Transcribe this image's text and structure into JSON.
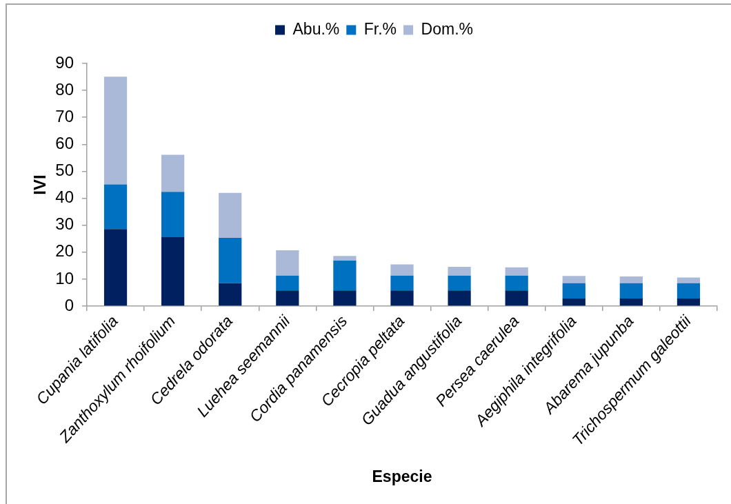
{
  "chart_data": {
    "type": "bar",
    "stacked": true,
    "xlabel": "Especie",
    "ylabel": "IVI",
    "categories": [
      "Cupania latifolia",
      "Zanthoxylum rhoifolium",
      "Cedrela odorata",
      "Luehea seemannii",
      "Cordia panamensis",
      "Cecropia peltata",
      "Guadua angustifolia",
      "Persea caerulea",
      "Aegiphila integrifolia",
      "Abarema jupunba",
      "Trichospermum galeottii"
    ],
    "series": [
      {
        "name": "Abu.%",
        "color": "#002060",
        "values": [
          28.6,
          25.6,
          8.5,
          5.8,
          5.8,
          5.8,
          5.8,
          5.8,
          2.8,
          2.8,
          2.8
        ]
      },
      {
        "name": "Fr.%",
        "color": "#0070c0",
        "values": [
          16.5,
          16.8,
          16.8,
          5.5,
          11.1,
          5.5,
          5.5,
          5.5,
          5.7,
          5.7,
          5.7
        ]
      },
      {
        "name": "Dom.%",
        "color": "#aab9d7",
        "values": [
          40.0,
          13.7,
          16.7,
          9.4,
          1.7,
          4.2,
          3.3,
          3.1,
          2.7,
          2.5,
          2.1
        ]
      }
    ],
    "ylim": [
      0,
      90
    ],
    "yticks": [
      0,
      10,
      20,
      30,
      40,
      50,
      60,
      70,
      80,
      90
    ],
    "grid": false,
    "legend": "top"
  }
}
